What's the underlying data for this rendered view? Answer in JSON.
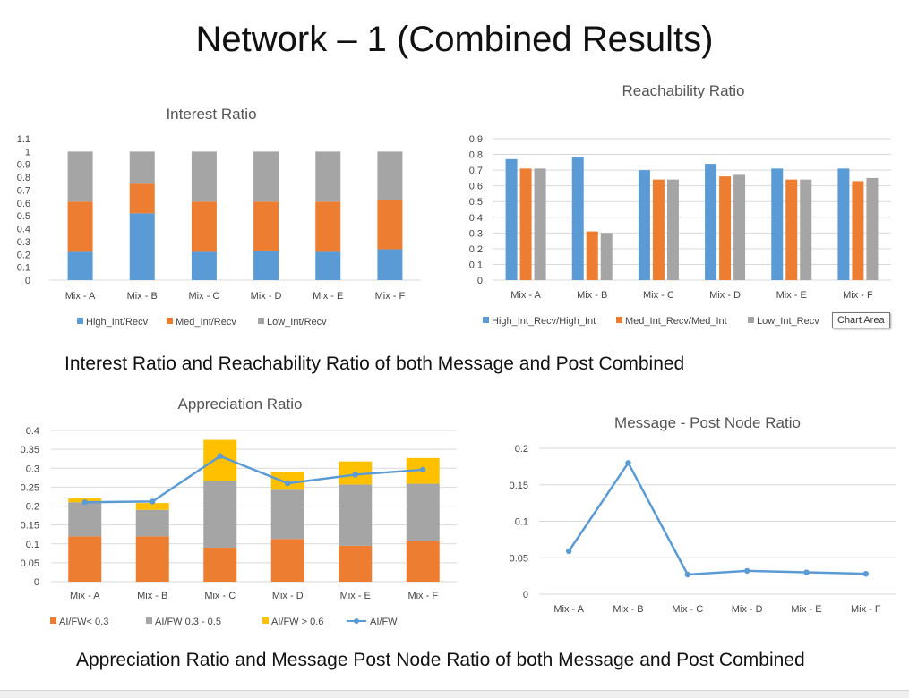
{
  "slide": {
    "title": "Network – 1 (Combined Results)",
    "caption_top": "Interest Ratio  and Reachability Ratio of both Message and Post Combined",
    "caption_bottom": "Appreciation Ratio and Message Post Node Ratio of both Message and Post Combined",
    "tooltip": "Chart Area"
  },
  "colors": {
    "blue": "#5B9BD5",
    "orange": "#ED7D31",
    "gray": "#A5A5A5",
    "yellow": "#FFC000",
    "grid": "#D9D9D9"
  },
  "chart_data": [
    {
      "id": "interest",
      "type": "bar",
      "stacked": true,
      "title": "Interest Ratio",
      "categories": [
        "Mix - A",
        "Mix - B",
        "Mix - C",
        "Mix - D",
        "Mix - E",
        "Mix - F"
      ],
      "y_ticks": [
        "0",
        "0.1",
        "0.2",
        "0.3",
        "0.4",
        "0.5",
        "0.6",
        "0.7",
        "0.8",
        "0.9",
        "1",
        "1.1"
      ],
      "ylim": [
        0,
        1.1
      ],
      "grid": false,
      "legend_position": "bottom",
      "series": [
        {
          "name": "High_Int/Recv",
          "color": "#5B9BD5",
          "values": [
            0.22,
            0.52,
            0.22,
            0.23,
            0.22,
            0.24
          ]
        },
        {
          "name": "Med_Int/Recv",
          "color": "#ED7D31",
          "values": [
            0.39,
            0.23,
            0.39,
            0.38,
            0.39,
            0.38
          ]
        },
        {
          "name": "Low_Int/Recv",
          "color": "#A5A5A5",
          "values": [
            0.39,
            0.25,
            0.39,
            0.39,
            0.39,
            0.38
          ]
        }
      ]
    },
    {
      "id": "reach",
      "type": "bar",
      "stacked": false,
      "title": "Reachability Ratio",
      "categories": [
        "Mix - A",
        "Mix - B",
        "Mix - C",
        "Mix - D",
        "Mix - E",
        "Mix - F"
      ],
      "y_ticks": [
        "0",
        "0.1",
        "0.2",
        "0.3",
        "0.4",
        "0.5",
        "0.6",
        "0.7",
        "0.8",
        "0.9"
      ],
      "ylim": [
        0,
        0.9
      ],
      "grid": true,
      "legend_position": "bottom",
      "series": [
        {
          "name": "High_Int_Recv/High_Int",
          "color": "#5B9BD5",
          "values": [
            0.77,
            0.78,
            0.7,
            0.74,
            0.71,
            0.71
          ]
        },
        {
          "name": "Med_Int_Recv/Med_Int",
          "color": "#ED7D31",
          "values": [
            0.71,
            0.31,
            0.64,
            0.66,
            0.64,
            0.63
          ]
        },
        {
          "name": "Low_Int_Recv",
          "color": "#A5A5A5",
          "values": [
            0.71,
            0.3,
            0.64,
            0.67,
            0.64,
            0.65
          ]
        }
      ]
    },
    {
      "id": "appreciation",
      "type": "bar",
      "stacked": true,
      "title": "Appreciation Ratio",
      "categories": [
        "Mix - A",
        "Mix - B",
        "Mix - C",
        "Mix - D",
        "Mix - E",
        "Mix - F"
      ],
      "y_ticks": [
        "0",
        "0.05",
        "0.1",
        "0.15",
        "0.2",
        "0.25",
        "0.3",
        "0.35",
        "0.4"
      ],
      "ylim": [
        0,
        0.4
      ],
      "grid": true,
      "legend_position": "bottom",
      "series": [
        {
          "name": "AI/FW< 0.3",
          "color": "#ED7D31",
          "values": [
            0.12,
            0.12,
            0.09,
            0.113,
            0.095,
            0.107
          ]
        },
        {
          "name": "AI/FW 0.3 - 0.5",
          "color": "#A5A5A5",
          "values": [
            0.09,
            0.07,
            0.177,
            0.13,
            0.162,
            0.152
          ]
        },
        {
          "name": "AI/FW > 0.6",
          "color": "#FFC000",
          "values": [
            0.01,
            0.018,
            0.108,
            0.048,
            0.061,
            0.068
          ]
        }
      ],
      "line_series": {
        "name": "AI/FW",
        "color": "#5B9BD5",
        "values": [
          0.21,
          0.212,
          0.332,
          0.26,
          0.283,
          0.296
        ]
      }
    },
    {
      "id": "node",
      "type": "line",
      "title": "Message - Post Node Ratio",
      "categories": [
        "Mix - A",
        "Mix - B",
        "Mix - C",
        "Mix - D",
        "Mix - E",
        "Mix - F"
      ],
      "y_ticks": [
        "0",
        "0.05",
        "0.1",
        "0.15",
        "0.2"
      ],
      "ylim": [
        0,
        0.2
      ],
      "grid": true,
      "series": [
        {
          "color": "#5B9BD5",
          "values": [
            0.059,
            0.18,
            0.027,
            0.032,
            0.03,
            0.028
          ]
        }
      ]
    }
  ]
}
